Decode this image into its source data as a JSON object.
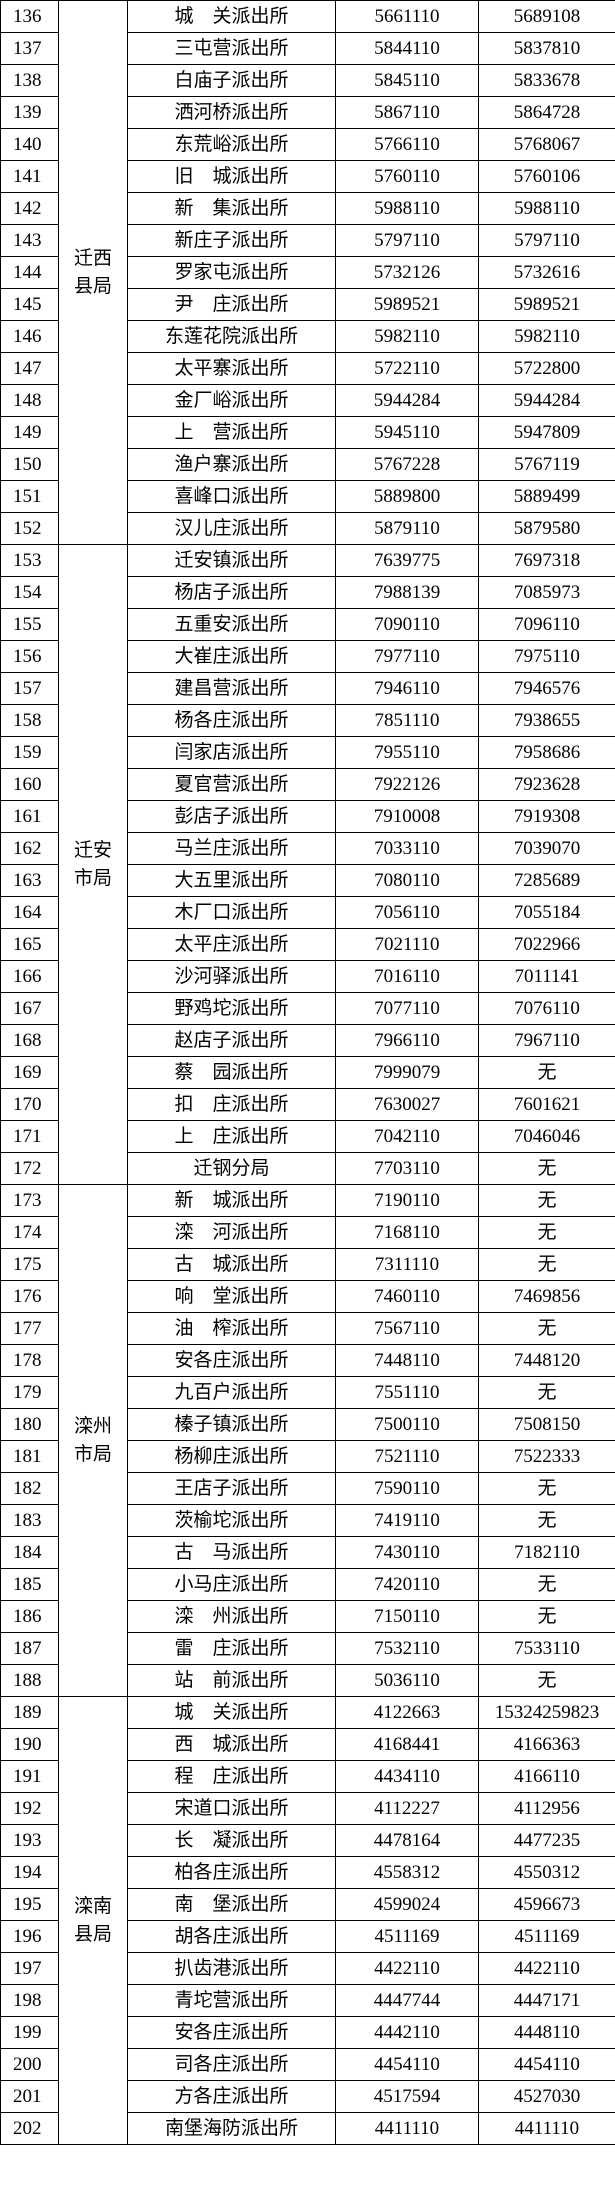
{
  "groups": [
    {
      "name": "迁西县局",
      "rows": [
        [
          "136",
          "城　关派出所",
          "5661110",
          "5689108"
        ],
        [
          "137",
          "三屯营派出所",
          "5844110",
          "5837810"
        ],
        [
          "138",
          "白庙子派出所",
          "5845110",
          "5833678"
        ],
        [
          "139",
          "洒河桥派出所",
          "5867110",
          "5864728"
        ],
        [
          "140",
          "东荒峪派出所",
          "5766110",
          "5768067"
        ],
        [
          "141",
          "旧　城派出所",
          "5760110",
          "5760106"
        ],
        [
          "142",
          "新　集派出所",
          "5988110",
          "5988110"
        ],
        [
          "143",
          "新庄子派出所",
          "5797110",
          "5797110"
        ],
        [
          "144",
          "罗家屯派出所",
          "5732126",
          "5732616"
        ],
        [
          "145",
          "尹　庄派出所",
          "5989521",
          "5989521"
        ],
        [
          "146",
          "东莲花院派出所",
          "5982110",
          "5982110"
        ],
        [
          "147",
          "太平寨派出所",
          "5722110",
          "5722800"
        ],
        [
          "148",
          "金厂峪派出所",
          "5944284",
          "5944284"
        ],
        [
          "149",
          "上　营派出所",
          "5945110",
          "5947809"
        ],
        [
          "150",
          "渔户寨派出所",
          "5767228",
          "5767119"
        ],
        [
          "151",
          "喜峰口派出所",
          "5889800",
          "5889499"
        ],
        [
          "152",
          "汉儿庄派出所",
          "5879110",
          "5879580"
        ]
      ]
    },
    {
      "name": "迁安市局",
      "rows": [
        [
          "153",
          "迁安镇派出所",
          "7639775",
          "7697318"
        ],
        [
          "154",
          "杨店子派出所",
          "7988139",
          "7085973"
        ],
        [
          "155",
          "五重安派出所",
          "7090110",
          "7096110"
        ],
        [
          "156",
          "大崔庄派出所",
          "7977110",
          "7975110"
        ],
        [
          "157",
          "建昌营派出所",
          "7946110",
          "7946576"
        ],
        [
          "158",
          "杨各庄派出所",
          "7851110",
          "7938655"
        ],
        [
          "159",
          "闫家店派出所",
          "7955110",
          "7958686"
        ],
        [
          "160",
          "夏官营派出所",
          "7922126",
          "7923628"
        ],
        [
          "161",
          "彭店子派出所",
          "7910008",
          "7919308"
        ],
        [
          "162",
          "马兰庄派出所",
          "7033110",
          "7039070"
        ],
        [
          "163",
          "大五里派出所",
          "7080110",
          "7285689"
        ],
        [
          "164",
          "木厂口派出所",
          "7056110",
          "7055184"
        ],
        [
          "165",
          "太平庄派出所",
          "7021110",
          "7022966"
        ],
        [
          "166",
          "沙河驿派出所",
          "7016110",
          "7011141"
        ],
        [
          "167",
          "野鸡坨派出所",
          "7077110",
          "7076110"
        ],
        [
          "168",
          "赵店子派出所",
          "7966110",
          "7967110"
        ],
        [
          "169",
          "蔡　园派出所",
          "7999079",
          "无"
        ],
        [
          "170",
          "扣　庄派出所",
          "7630027",
          "7601621"
        ],
        [
          "171",
          "上　庄派出所",
          "7042110",
          "7046046"
        ],
        [
          "172",
          "迁钢分局",
          "7703110",
          "无"
        ]
      ]
    },
    {
      "name": "滦州市局",
      "rows": [
        [
          "173",
          "新　城派出所",
          "7190110",
          "无"
        ],
        [
          "174",
          "滦　河派出所",
          "7168110",
          "无"
        ],
        [
          "175",
          "古　城派出所",
          "7311110",
          "无"
        ],
        [
          "176",
          "响　堂派出所",
          "7460110",
          "7469856"
        ],
        [
          "177",
          "油　榨派出所",
          "7567110",
          "无"
        ],
        [
          "178",
          "安各庄派出所",
          "7448110",
          "7448120"
        ],
        [
          "179",
          "九百户派出所",
          "7551110",
          "无"
        ],
        [
          "180",
          "榛子镇派出所",
          "7500110",
          "7508150"
        ],
        [
          "181",
          "杨柳庄派出所",
          "7521110",
          "7522333"
        ],
        [
          "182",
          "王店子派出所",
          "7590110",
          "无"
        ],
        [
          "183",
          "茨榆坨派出所",
          "7419110",
          "无"
        ],
        [
          "184",
          "古　马派出所",
          "7430110",
          "7182110"
        ],
        [
          "185",
          "小马庄派出所",
          "7420110",
          "无"
        ],
        [
          "186",
          "滦　州派出所",
          "7150110",
          "无"
        ],
        [
          "187",
          "雷　庄派出所",
          "7532110",
          "7533110"
        ],
        [
          "188",
          "站　前派出所",
          "5036110",
          "无"
        ]
      ]
    },
    {
      "name": "滦南县局",
      "rows": [
        [
          "189",
          "城　关派出所",
          "4122663",
          "15324259823"
        ],
        [
          "190",
          "西　城派出所",
          "4168441",
          "4166363"
        ],
        [
          "191",
          "程　庄派出所",
          "4434110",
          "4166110"
        ],
        [
          "192",
          "宋道口派出所",
          "4112227",
          "4112956"
        ],
        [
          "193",
          "长　凝派出所",
          "4478164",
          "4477235"
        ],
        [
          "194",
          "柏各庄派出所",
          "4558312",
          "4550312"
        ],
        [
          "195",
          "南　堡派出所",
          "4599024",
          "4596673"
        ],
        [
          "196",
          "胡各庄派出所",
          "4511169",
          "4511169"
        ],
        [
          "197",
          "扒齿港派出所",
          "4422110",
          "4422110"
        ],
        [
          "198",
          "青坨营派出所",
          "4447744",
          "4447171"
        ],
        [
          "199",
          "安各庄派出所",
          "4442110",
          "4448110"
        ],
        [
          "200",
          "司各庄派出所",
          "4454110",
          "4454110"
        ],
        [
          "201",
          "方各庄派出所",
          "4517594",
          "4527030"
        ],
        [
          "202",
          "南堡海防派出所",
          "4411110",
          "4411110"
        ]
      ]
    }
  ]
}
